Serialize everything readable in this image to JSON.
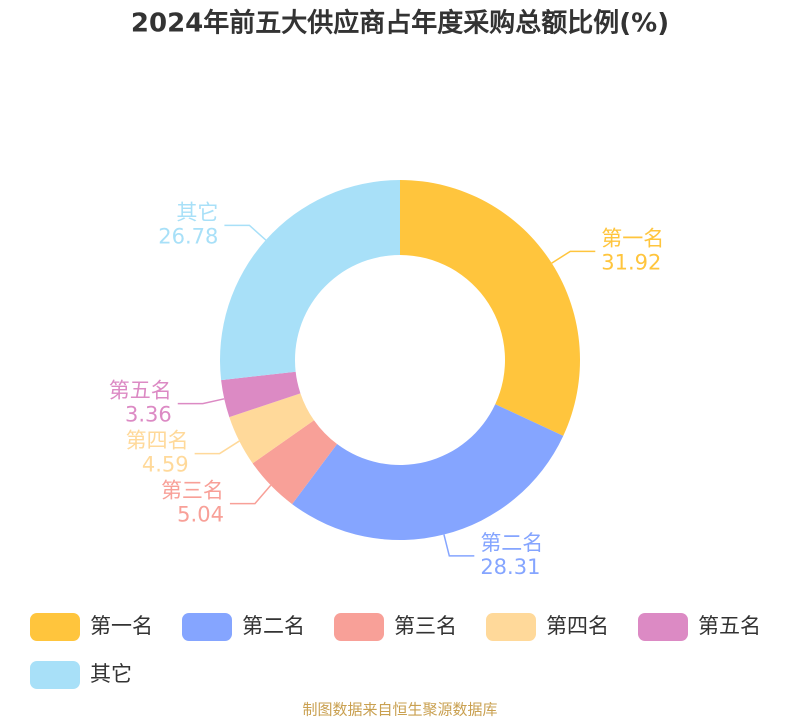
{
  "chart_data": {
    "type": "donut",
    "title": "2024年前五大供应商占年度采购总额比例(%)",
    "categories": [
      "第一名",
      "第二名",
      "第三名",
      "第四名",
      "第五名",
      "其它"
    ],
    "values": [
      31.92,
      28.31,
      5.04,
      4.59,
      3.36,
      26.78
    ],
    "colors": [
      "#ffc53d",
      "#85a5ff",
      "#f8a098",
      "#ffd99a",
      "#dc8ac4",
      "#a8e0f8"
    ],
    "legend": "bottom",
    "source": "制图数据来自恒生聚源数据库"
  }
}
